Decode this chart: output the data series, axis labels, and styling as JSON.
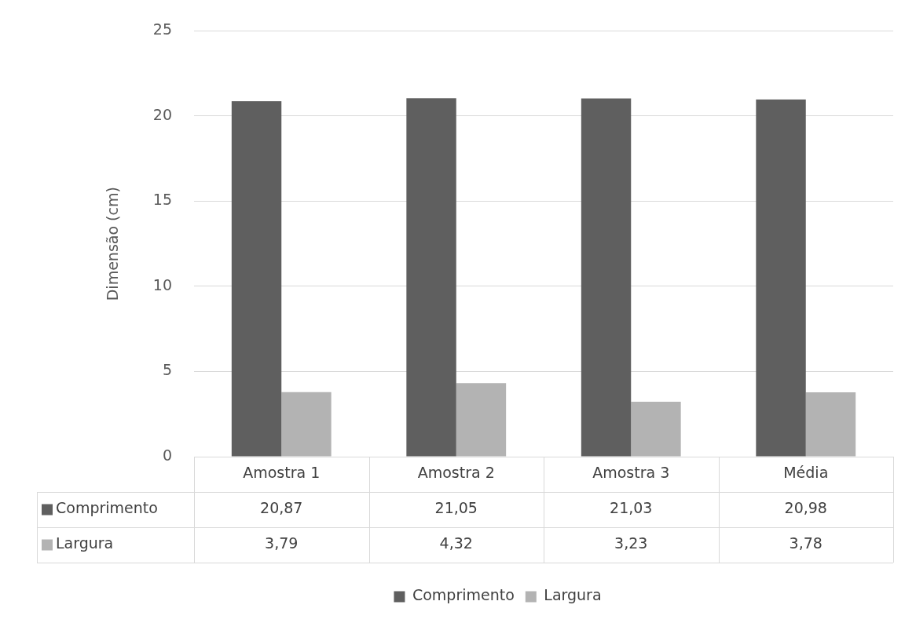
{
  "chart_data": {
    "type": "bar",
    "ylabel": "Dimensão (cm)",
    "categories": [
      "Amostra 1",
      "Amostra 2",
      "Amostra 3",
      "Média"
    ],
    "series": [
      {
        "name": "Comprimento",
        "color": "#5f5f5f",
        "values": [
          20.87,
          21.05,
          21.03,
          20.98
        ],
        "value_labels": [
          "20,87",
          "21,05",
          "21,03",
          "20,98"
        ]
      },
      {
        "name": "Largura",
        "color": "#b3b3b3",
        "values": [
          3.79,
          4.32,
          3.23,
          3.78
        ],
        "value_labels": [
          "3,79",
          "4,32",
          "3,23",
          "3,78"
        ]
      }
    ],
    "ylim": [
      0,
      25
    ],
    "yticks": [
      0,
      5,
      10,
      15,
      20,
      25
    ],
    "grid": "y",
    "legend": "bottom"
  }
}
